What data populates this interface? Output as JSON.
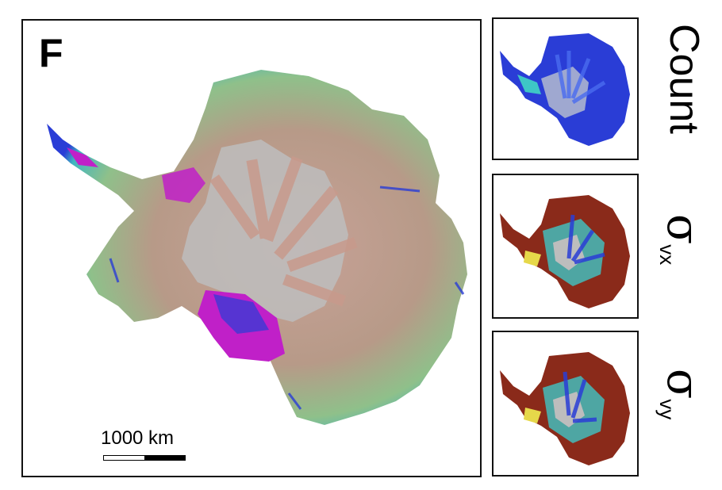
{
  "panel_letter": "F",
  "scale_bar": {
    "label": "1000 km"
  },
  "side_labels": {
    "count": "Count",
    "sigma_vx": {
      "symbol": "σ",
      "subscript": "vx"
    },
    "sigma_vy": {
      "symbol": "σ",
      "subscript": "vy"
    }
  },
  "colors": {
    "ice_gray": "#bdbdbd",
    "pink_brown": "#c89a8c",
    "green": "#7fc38a",
    "cyan": "#3ec6c6",
    "blue": "#2a3dd6",
    "magenta": "#c020c8",
    "red_brown": "#8a2a1a",
    "yellow": "#e6d84a"
  }
}
